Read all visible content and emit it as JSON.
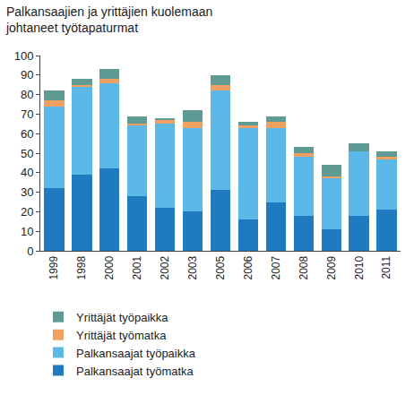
{
  "chart_data": {
    "type": "bar",
    "title": "Palkansaajien ja yrittäjien kuolemaan\njohtaneet työtapaturmat",
    "stacked": true,
    "categories": [
      "1999",
      "1998",
      "2000",
      "2001",
      "2002",
      "2003",
      "2005",
      "2006",
      "2007",
      "2008",
      "2009",
      "2010",
      "2011"
    ],
    "series": [
      {
        "name": "Palkansaajat työmatka",
        "color": "#1f7bbf",
        "values": [
          32,
          39,
          42,
          28,
          22,
          20,
          31,
          16,
          25,
          18,
          11,
          18,
          21
        ]
      },
      {
        "name": "Palkansaajat työpaikka",
        "color": "#5cb8e6",
        "values": [
          42,
          45,
          44,
          36,
          43,
          43,
          51,
          47,
          38,
          30,
          26,
          33,
          26
        ]
      },
      {
        "name": "Yrittäjät työmatka",
        "color": "#f0a060",
        "values": [
          3,
          1,
          2,
          1,
          2,
          3,
          3,
          1,
          3,
          2,
          1,
          0,
          1
        ]
      },
      {
        "name": "Yrittäjät työpaikka",
        "color": "#5f9a94",
        "values": [
          5,
          3,
          5,
          4,
          1,
          6,
          5,
          2,
          3,
          3,
          6,
          4,
          3
        ]
      }
    ],
    "ylim": [
      0,
      100
    ],
    "yticks": [
      0,
      10,
      20,
      30,
      40,
      50,
      60,
      70,
      80,
      90,
      100
    ],
    "grid": false,
    "legend": "bottom"
  }
}
